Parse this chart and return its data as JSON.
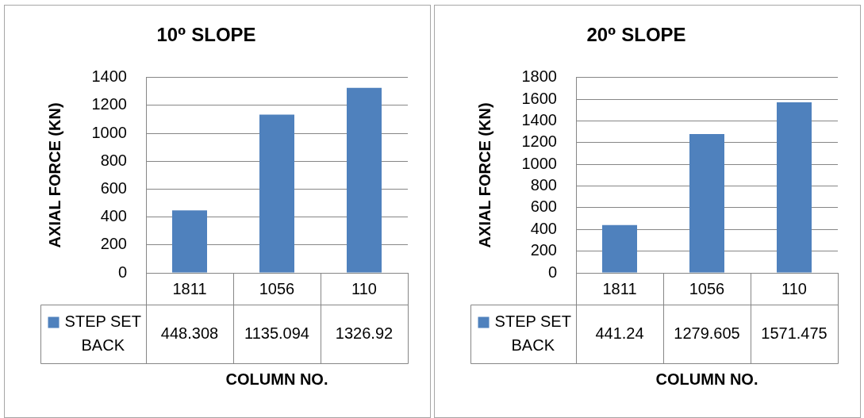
{
  "chart_data": [
    {
      "type": "bar",
      "title": "10⁰ SLOPE",
      "xlabel": "COLUMN NO.",
      "ylabel": "AXIAL FORCE (KN)",
      "categories": [
        "1811",
        "1056",
        "110"
      ],
      "series": [
        {
          "name": "STEP SET BACK",
          "color": "#4f81bd",
          "values": [
            448.308,
            1135.094,
            1326.92
          ]
        }
      ],
      "ylim": [
        0,
        1400
      ],
      "yticks": [
        0,
        200,
        400,
        600,
        800,
        1000,
        1200,
        1400
      ],
      "grid": "y",
      "legend": "bottom left",
      "data_labels": true
    },
    {
      "type": "bar",
      "title": "20⁰ SLOPE",
      "xlabel": "COLUMN NO.",
      "ylabel": "AXIAL FORCE (KN)",
      "categories": [
        "1811",
        "1056",
        "110"
      ],
      "series": [
        {
          "name": "STEP SET BACK",
          "color": "#4f81bd",
          "values": [
            441.24,
            1279.605,
            1571.475
          ]
        }
      ],
      "ylim": [
        0,
        1800
      ],
      "yticks": [
        0,
        200,
        400,
        600,
        800,
        1000,
        1200,
        1400,
        1600,
        1800
      ],
      "grid": "y",
      "legend": "bottom left",
      "data_labels": true
    }
  ]
}
